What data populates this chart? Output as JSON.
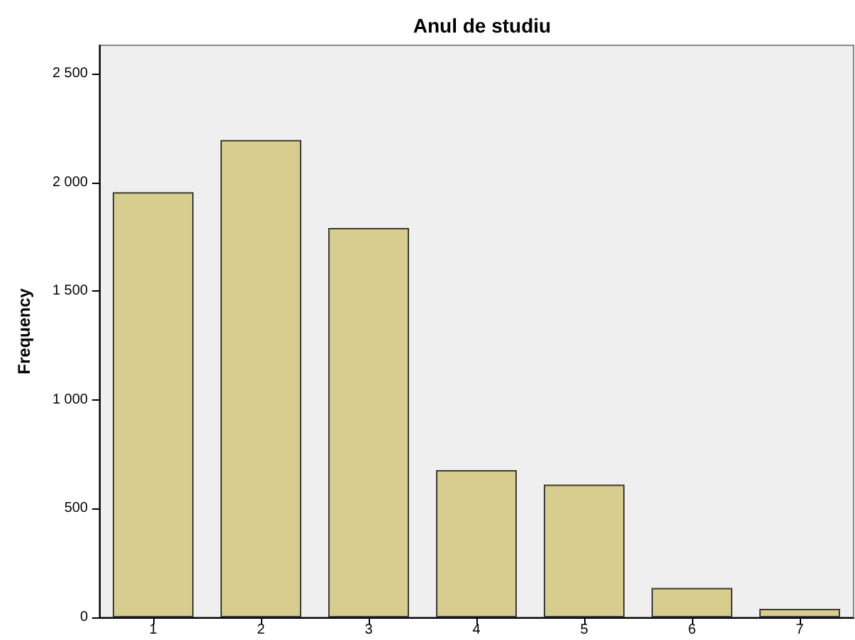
{
  "chart_data": {
    "type": "bar",
    "title": "Anul de studiu",
    "ylabel": "Frequency",
    "categories": [
      "1",
      "2",
      "3",
      "4",
      "5",
      "6",
      "7"
    ],
    "values": [
      1955,
      2195,
      1790,
      677,
      610,
      135,
      39
    ],
    "color": "#d6cd8e",
    "ylim": [
      0,
      2630
    ],
    "yticks": [
      0,
      500,
      {
        "value": 1000,
        "label": "1 000"
      },
      {
        "value": 1500,
        "label": "1 500"
      },
      {
        "value": 2000,
        "label": "2 000"
      },
      {
        "value": 2500,
        "label": "2 500"
      }
    ],
    "grid": false
  }
}
